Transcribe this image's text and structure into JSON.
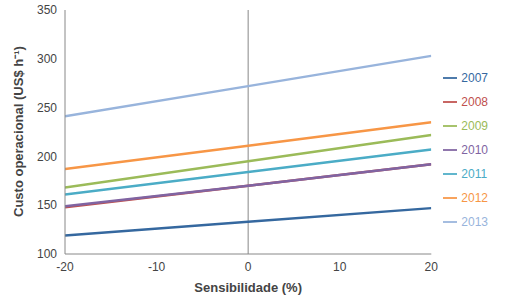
{
  "chart_data": {
    "type": "line",
    "x_label": "Sensibilidade (%)",
    "y_label": "Custo operacional (US$ h⁻¹)",
    "x": [
      -20,
      0,
      20
    ],
    "series": [
      {
        "name": "2007",
        "color": "#35689f",
        "values": [
          119,
          133,
          147
        ]
      },
      {
        "name": "2008",
        "color": "#c0504d",
        "values": [
          148,
          170,
          192
        ]
      },
      {
        "name": "2009",
        "color": "#9bbb59",
        "values": [
          168,
          195,
          222
        ]
      },
      {
        "name": "2010",
        "color": "#8064a2",
        "values": [
          149,
          170,
          192
        ]
      },
      {
        "name": "2011",
        "color": "#4bacc6",
        "values": [
          161,
          184,
          207
        ]
      },
      {
        "name": "2012",
        "color": "#f79646",
        "values": [
          187,
          211,
          235
        ]
      },
      {
        "name": "2013",
        "color": "#98b4dc",
        "values": [
          241,
          272,
          303
        ]
      }
    ],
    "xlim": [
      -20,
      20
    ],
    "xticks": [
      -20,
      -10,
      0,
      10,
      20
    ],
    "ylim": [
      100,
      350
    ],
    "yticks": [
      100,
      150,
      200,
      250,
      300,
      350
    ],
    "grid": false,
    "legend": "right"
  }
}
